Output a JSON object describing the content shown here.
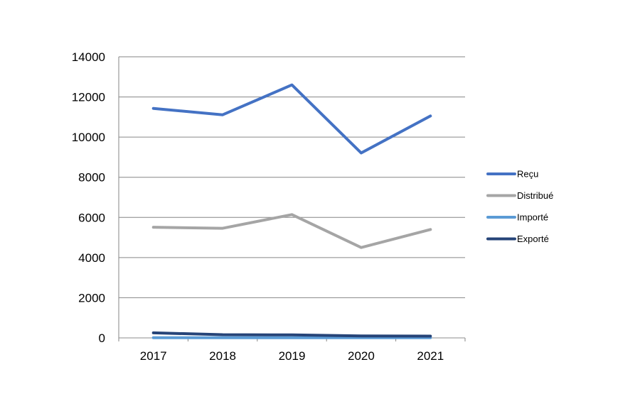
{
  "chart_data": {
    "type": "line",
    "categories": [
      "2017",
      "2018",
      "2019",
      "2020",
      "2021"
    ],
    "ylim": [
      0,
      14000
    ],
    "yticks": [
      0,
      2000,
      4000,
      6000,
      8000,
      10000,
      12000,
      14000
    ],
    "grid": true,
    "legend_position": "right",
    "series": [
      {
        "name": "Reçu",
        "color": "#4472C4",
        "values": [
          11430,
          11110,
          12600,
          9210,
          11050
        ]
      },
      {
        "name": "Distribué",
        "color": "#A5A5A5",
        "values": [
          5510,
          5460,
          6140,
          4500,
          5400
        ]
      },
      {
        "name": "Importé",
        "color": "#5B9BD5",
        "values": [
          10,
          10,
          10,
          10,
          10
        ]
      },
      {
        "name": "Exporté",
        "color": "#264478",
        "values": [
          250,
          160,
          150,
          100,
          90
        ]
      }
    ]
  }
}
